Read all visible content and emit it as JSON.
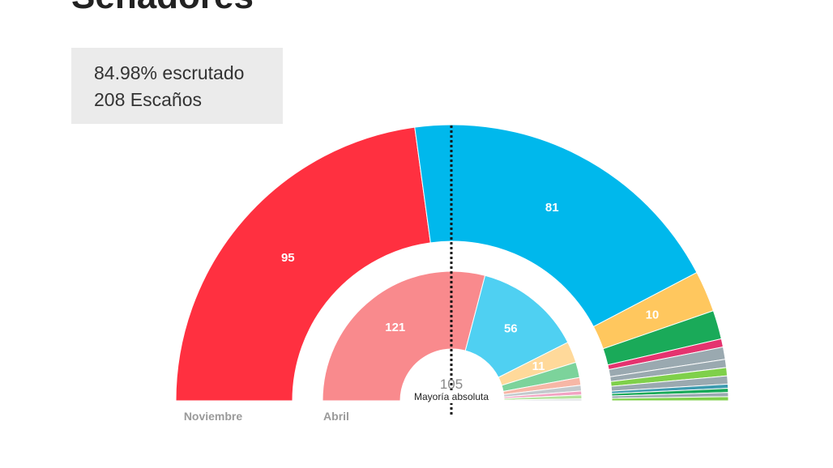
{
  "header": {
    "title": "Senadores"
  },
  "summary": {
    "scrutinized": "84.98% escrutado",
    "seats": "208 Escaños"
  },
  "colors": {
    "PSOE": "#ff3040",
    "PSOE_light": "#f98a8d",
    "PP": "#00b8ec",
    "PP_light": "#4fd0f2",
    "orange": "#ffc75e",
    "orange_light": "#ffd99a",
    "green": "#1aaa59",
    "green_light": "#7cd39b",
    "pink": "#e5336f",
    "grey": "#9aa9b0",
    "lime": "#7fd04a",
    "teal": "#3d9bb0"
  },
  "chart_data": {
    "type": "parliament-donut",
    "total_seats": 208,
    "majority": {
      "value": "105",
      "label": "Mayoría absoluta"
    },
    "rings": [
      {
        "name": "Noviembre",
        "segments": [
          {
            "seats": 95,
            "label": "95",
            "color": "#ff3040"
          },
          {
            "seats": 81,
            "label": "81",
            "color": "#00b8ec"
          },
          {
            "seats": 10,
            "label": "10",
            "color": "#ffc75e"
          },
          {
            "seats": 7,
            "label": "",
            "color": "#1aaa59"
          },
          {
            "seats": 2,
            "label": "",
            "color": "#e5336f"
          },
          {
            "seats": 3,
            "label": "",
            "color": "#9aa9b0"
          },
          {
            "seats": 2,
            "label": "",
            "color": "#9aa9b0"
          },
          {
            "seats": 2,
            "label": "",
            "color": "#7fd04a"
          },
          {
            "seats": 2,
            "label": "",
            "color": "#9aa9b0"
          },
          {
            "seats": 1,
            "label": "",
            "color": "#3d9bb0"
          },
          {
            "seats": 1,
            "label": "",
            "color": "#1aaa59"
          },
          {
            "seats": 1,
            "label": "",
            "color": "#9aa9b0"
          },
          {
            "seats": 1,
            "label": "",
            "color": "#7fd04a"
          }
        ]
      },
      {
        "name": "Abril",
        "segments": [
          {
            "seats": 121,
            "label": "121",
            "color": "#f98a8d"
          },
          {
            "seats": 56,
            "label": "56",
            "color": "#4fd0f2"
          },
          {
            "seats": 11,
            "label": "11",
            "color": "#ffd99a"
          },
          {
            "seats": 8,
            "label": "",
            "color": "#7cd39b"
          },
          {
            "seats": 4,
            "label": "",
            "color": "#f7b7a6"
          },
          {
            "seats": 3,
            "label": "",
            "color": "#c3c9cd"
          },
          {
            "seats": 2,
            "label": "",
            "color": "#f2a2c2"
          },
          {
            "seats": 2,
            "label": "",
            "color": "#b5e39e"
          },
          {
            "seats": 1,
            "label": "",
            "color": "#d6dadd"
          }
        ]
      }
    ]
  }
}
